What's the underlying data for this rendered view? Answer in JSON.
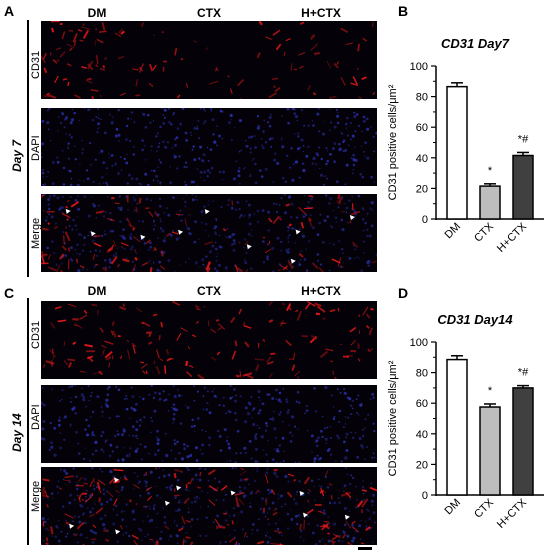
{
  "panels": {
    "A": {
      "letter": "A",
      "day": "Day 7",
      "columns": [
        "DM",
        "CTX",
        "H+CTX"
      ],
      "rows": [
        "CD31",
        "DAPI",
        "Merge"
      ]
    },
    "C": {
      "letter": "C",
      "day": "Day 14",
      "columns": [
        "DM",
        "CTX",
        "H+CTX"
      ],
      "rows": [
        "CD31",
        "DAPI",
        "Merge"
      ]
    },
    "B": {
      "letter": "B"
    },
    "D": {
      "letter": "D"
    }
  },
  "chart_data": [
    {
      "type": "bar",
      "title": "CD31 Day7",
      "ylabel": "CD31 positive cells/μm²",
      "categories": [
        "DM",
        "CTX",
        "H+CTX"
      ],
      "values": [
        86.5,
        21.5,
        41.5
      ],
      "errors": [
        2.5,
        1.5,
        2.0
      ],
      "annotations": [
        "",
        "*",
        "*#"
      ],
      "bar_colors": [
        "#ffffff",
        "#bdbdbd",
        "#404040"
      ],
      "ylim": [
        0,
        100
      ],
      "yticks": [
        0,
        20,
        40,
        60,
        80,
        100
      ]
    },
    {
      "type": "bar",
      "title": "CD31 Day14",
      "ylabel": "CD31 positive cells/μm²",
      "categories": [
        "DM",
        "CTX",
        "H+CTX"
      ],
      "values": [
        88.5,
        57.5,
        70.0
      ],
      "errors": [
        2.5,
        2.0,
        1.5
      ],
      "annotations": [
        "",
        "*",
        "*#"
      ],
      "bar_colors": [
        "#ffffff",
        "#bdbdbd",
        "#404040"
      ],
      "ylim": [
        0,
        100
      ],
      "yticks": [
        0,
        20,
        40,
        60,
        80,
        100
      ]
    }
  ]
}
